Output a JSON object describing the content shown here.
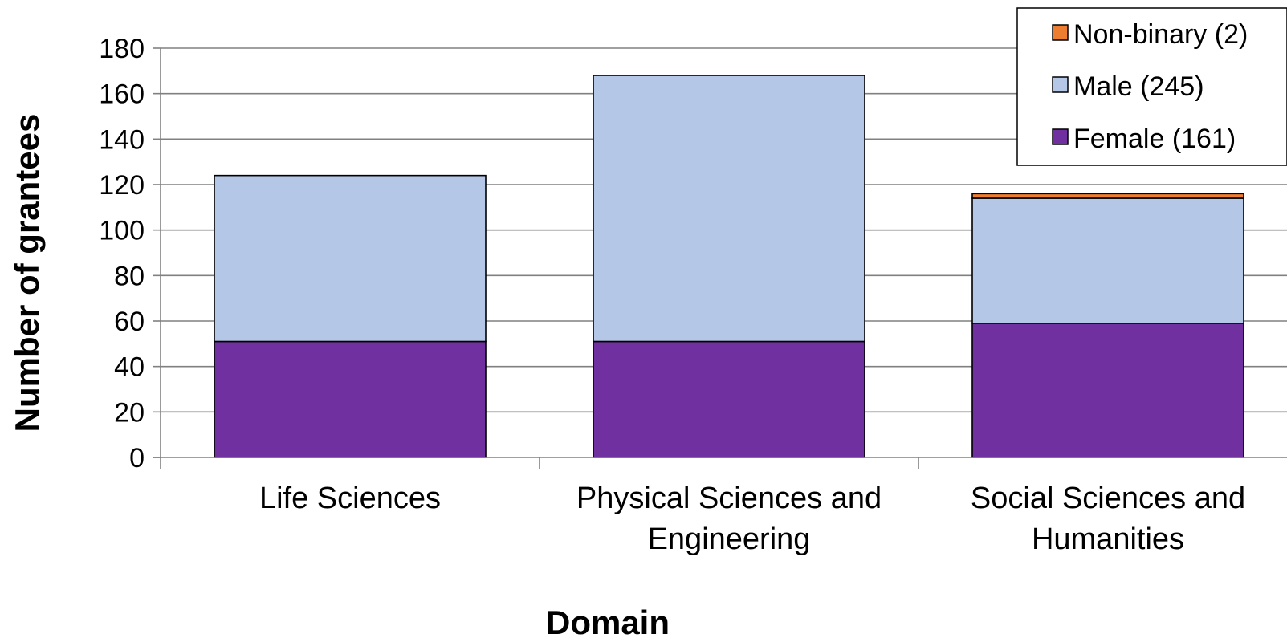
{
  "chart_data": {
    "type": "bar",
    "stacked": true,
    "title": "",
    "xlabel": "Domain",
    "ylabel": "Number of grantees",
    "ylim": [
      0,
      180
    ],
    "yticks": [
      "0",
      "20",
      "40",
      "60",
      "80",
      "100",
      "120",
      "140",
      "160",
      "180"
    ],
    "grid": true,
    "legend_position": "top-right",
    "categories": [
      [
        "Life Sciences"
      ],
      [
        "Physical Sciences and",
        "Engineering"
      ],
      [
        "Social Sciences and",
        "Humanities"
      ]
    ],
    "series": [
      {
        "name": "Female (161)",
        "color": "#7030a0",
        "values": [
          51,
          51,
          59
        ]
      },
      {
        "name": "Male (245)",
        "color": "#b4c7e7",
        "values": [
          73,
          117,
          55
        ]
      },
      {
        "name": "Non-binary (2)",
        "color": "#ed7d31",
        "values": [
          0,
          0,
          2
        ]
      }
    ]
  }
}
